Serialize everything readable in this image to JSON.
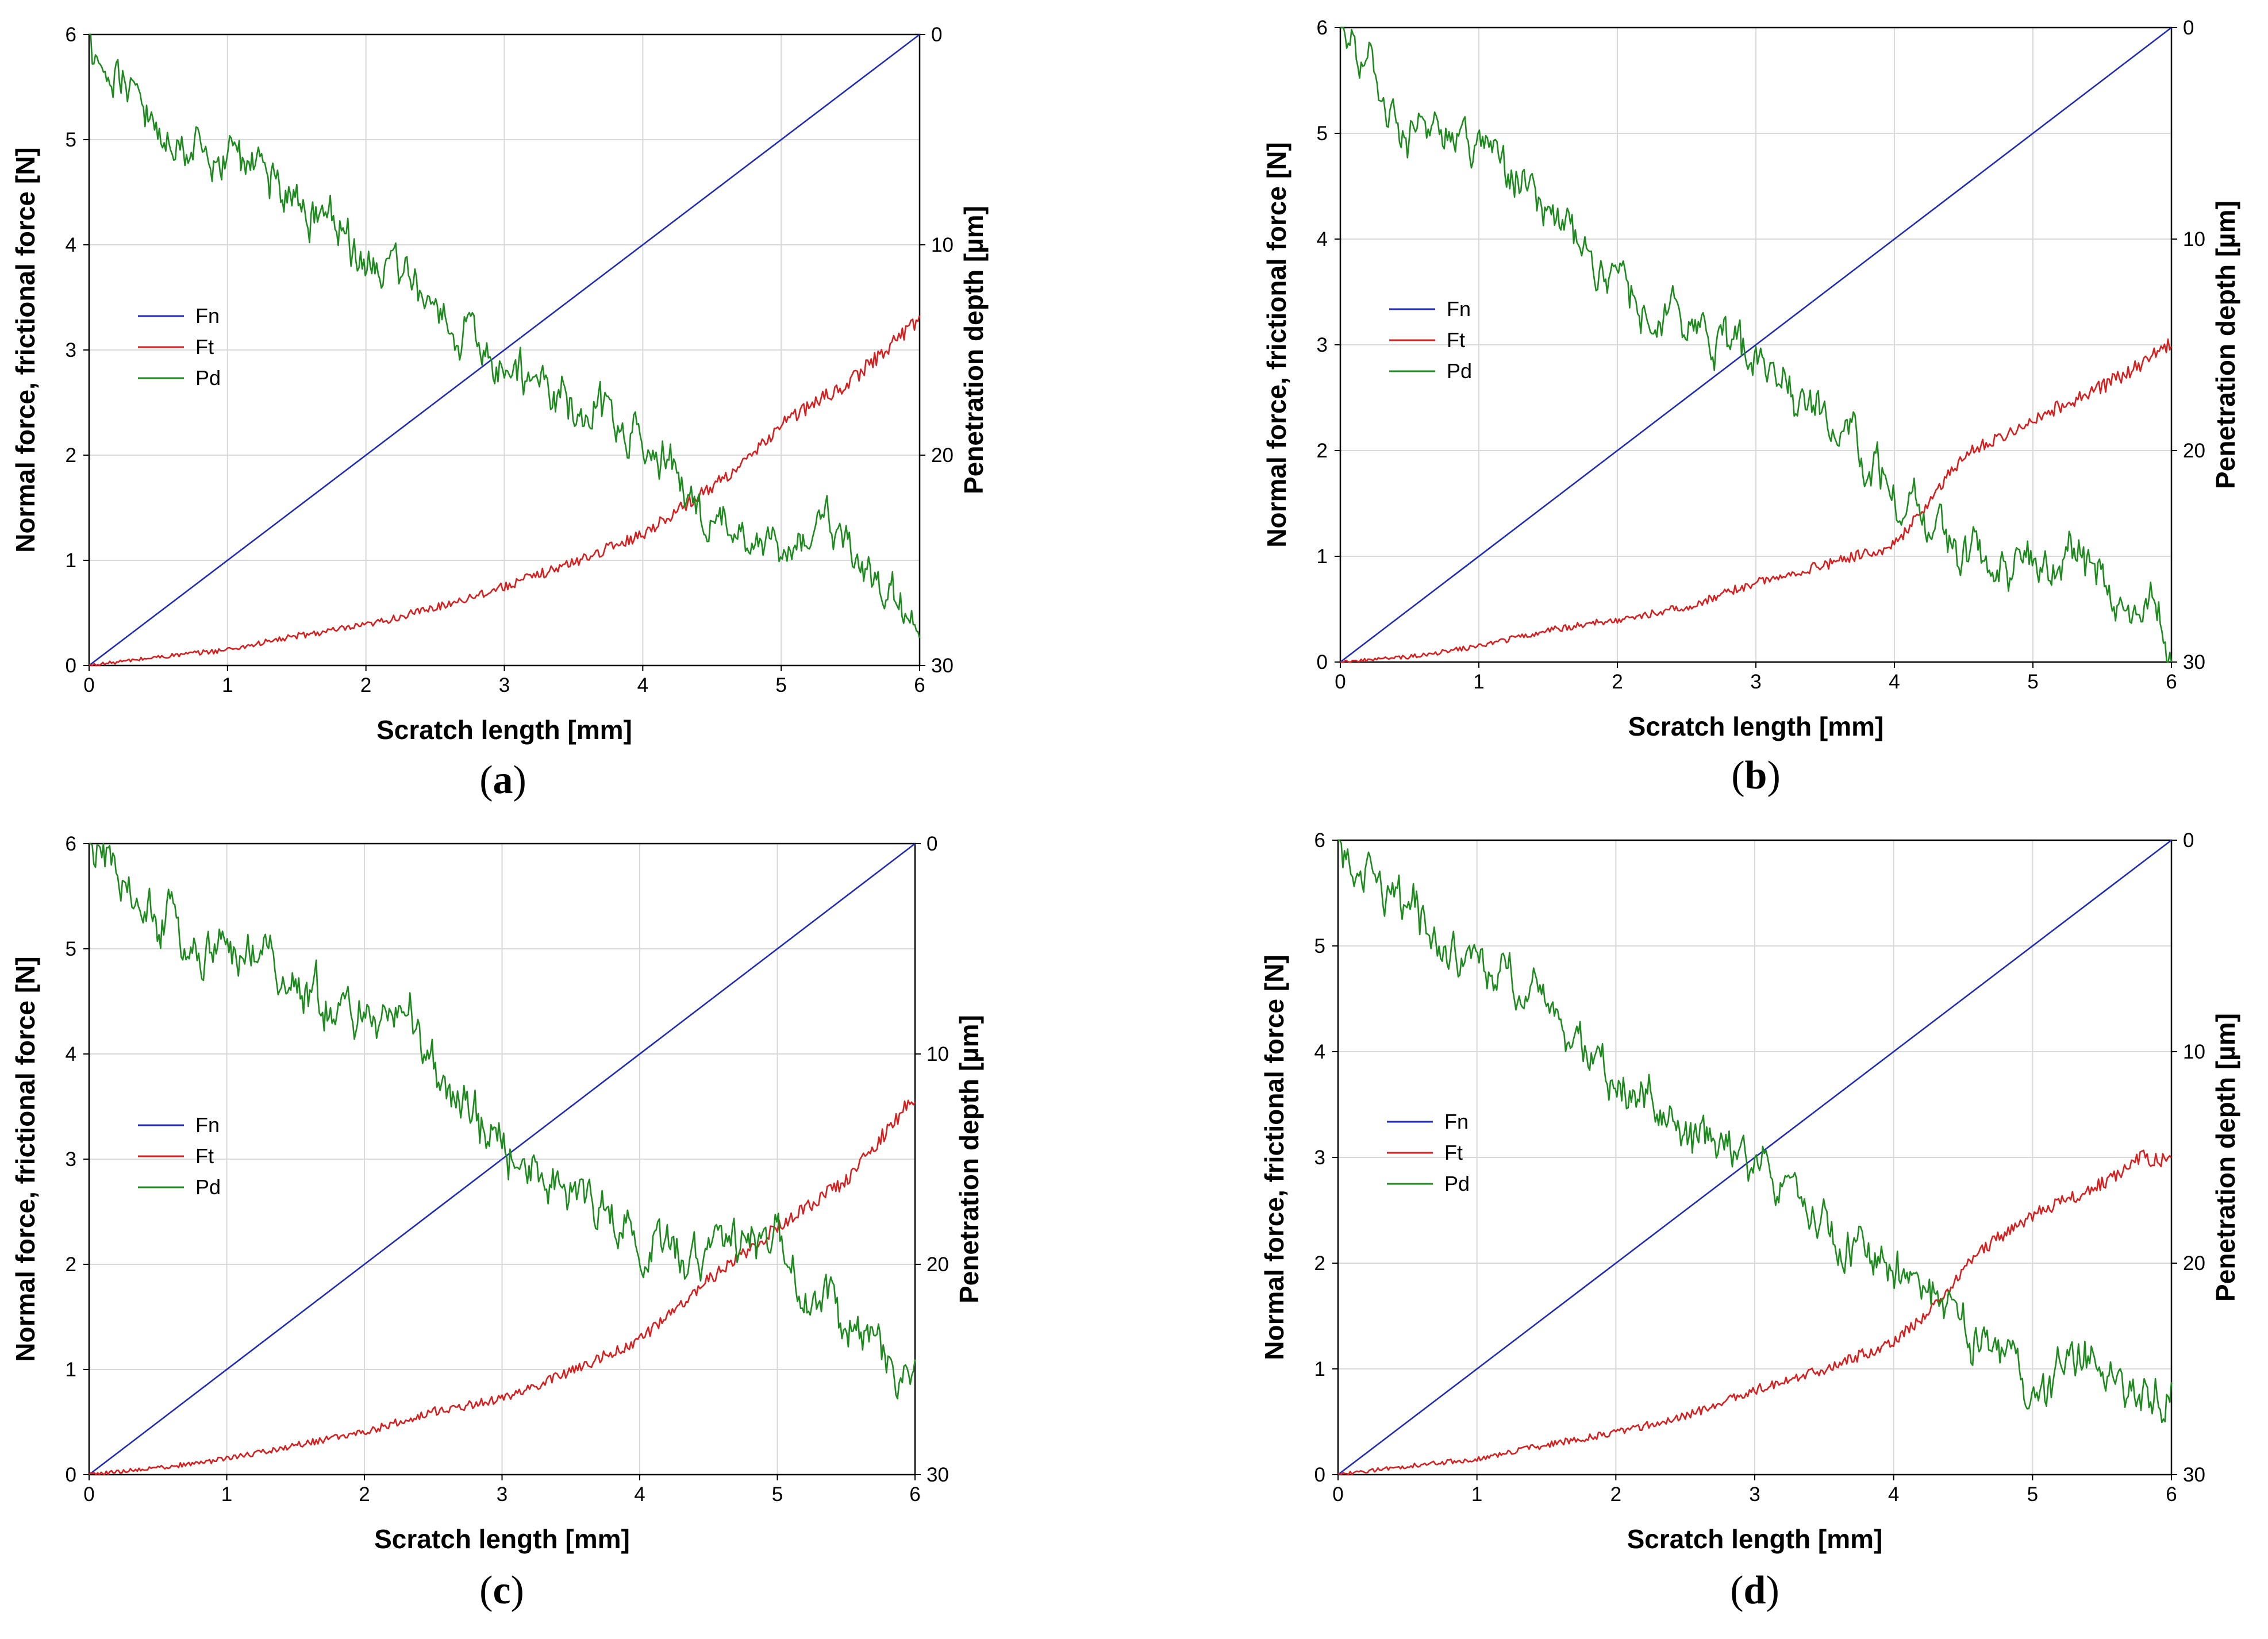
{
  "figure": {
    "panels_order": [
      "a",
      "b",
      "c",
      "d"
    ]
  },
  "chart_data": [
    {
      "type": "line",
      "panel_label": "a",
      "xlabel": "Scratch length [mm]",
      "ylabel_left": "Normal force, frictional force [N]",
      "ylabel_right": "Penetration depth [µm]",
      "xlim": [
        0,
        6
      ],
      "ylim_left": [
        0,
        6
      ],
      "ylim_right": [
        0,
        30
      ],
      "xticks": [
        "0",
        "1",
        "2",
        "3",
        "4",
        "5",
        "6"
      ],
      "yticks_left": [
        "0",
        "1",
        "2",
        "3",
        "4",
        "5",
        "6"
      ],
      "yticks_right": [
        "0",
        "10",
        "20",
        "30"
      ],
      "grid": true,
      "legend": [
        "Fn",
        "Ft",
        "Pd"
      ],
      "series": [
        {
          "name": "Fn",
          "axis": "left",
          "color": "#1f2bb5",
          "x": [
            0,
            6
          ],
          "values": [
            0,
            6
          ]
        },
        {
          "name": "Ft",
          "axis": "left",
          "color": "#d62020",
          "x": [
            0,
            0.5,
            1,
            1.5,
            2,
            2.5,
            3,
            3.5,
            4,
            4.5,
            4.8,
            5,
            5.5,
            6
          ],
          "values": [
            0,
            0.08,
            0.15,
            0.28,
            0.38,
            0.55,
            0.75,
            0.98,
            1.25,
            1.7,
            2.0,
            2.3,
            2.7,
            3.3
          ]
        },
        {
          "name": "Pd",
          "axis": "right",
          "color": "#1d8a1d",
          "x": [
            0,
            0.3,
            0.6,
            1,
            1.4,
            1.8,
            2.2,
            2.6,
            3,
            3.3,
            3.6,
            4,
            4.3,
            4.5,
            4.8,
            5,
            5.3,
            5.5,
            5.7,
            6
          ],
          "values": [
            0,
            2.5,
            5,
            5.8,
            7.5,
            9.5,
            11.5,
            13.5,
            16,
            16.5,
            18,
            19,
            21.5,
            23,
            23.5,
            24.5,
            23,
            24.5,
            26.5,
            28
          ]
        }
      ]
    },
    {
      "type": "line",
      "panel_label": "b",
      "xlabel": "Scratch length [mm]",
      "ylabel_left": "Normal force, frictional force [N]",
      "ylabel_right": "Penetration depth [µm]",
      "xlim": [
        0,
        6
      ],
      "ylim_left": [
        0,
        6
      ],
      "ylim_right": [
        0,
        30
      ],
      "xticks": [
        "0",
        "1",
        "2",
        "3",
        "4",
        "5",
        "6"
      ],
      "yticks_left": [
        "0",
        "1",
        "2",
        "3",
        "4",
        "5",
        "6"
      ],
      "yticks_right": [
        "0",
        "10",
        "20",
        "30"
      ],
      "grid": true,
      "legend": [
        "Fn",
        "Ft",
        "Pd"
      ],
      "series": [
        {
          "name": "Fn",
          "axis": "left",
          "color": "#1f2bb5",
          "x": [
            0,
            6
          ],
          "values": [
            0,
            6
          ]
        },
        {
          "name": "Ft",
          "axis": "left",
          "color": "#d62020",
          "x": [
            0,
            0.5,
            1,
            1.5,
            2,
            2.5,
            3,
            3.5,
            4,
            4.5,
            5,
            5.5,
            6
          ],
          "values": [
            0,
            0.05,
            0.15,
            0.3,
            0.4,
            0.52,
            0.75,
            0.92,
            1.1,
            1.95,
            2.3,
            2.6,
            3.0
          ]
        },
        {
          "name": "Pd",
          "axis": "right",
          "color": "#1d8a1d",
          "x": [
            0,
            0.2,
            0.4,
            0.6,
            1,
            1.4,
            1.8,
            2.2,
            2.6,
            3,
            3.4,
            3.7,
            4,
            4.3,
            4.6,
            5,
            5.3,
            5.6,
            5.9,
            6
          ],
          "values": [
            0,
            1.5,
            5,
            4.5,
            5,
            8,
            11,
            13.5,
            14.5,
            15.5,
            18,
            20,
            22,
            24,
            25,
            26,
            25,
            27,
            28,
            29
          ]
        }
      ]
    },
    {
      "type": "line",
      "panel_label": "c",
      "xlabel": "Scratch length [mm]",
      "ylabel_left": "Normal force, frictional force [N]",
      "ylabel_right": "Penetration depth [µm]",
      "xlim": [
        0,
        6
      ],
      "ylim_left": [
        0,
        6
      ],
      "ylim_right": [
        0,
        30
      ],
      "xticks": [
        "0",
        "1",
        "2",
        "3",
        "4",
        "5",
        "6"
      ],
      "yticks_left": [
        "0",
        "1",
        "2",
        "3",
        "4",
        "5",
        "6"
      ],
      "yticks_right": [
        "0",
        "10",
        "20",
        "30"
      ],
      "grid": true,
      "legend": [
        "Fn",
        "Ft",
        "Pd"
      ],
      "series": [
        {
          "name": "Fn",
          "axis": "left",
          "color": "#1f2bb5",
          "x": [
            0,
            6
          ],
          "values": [
            0,
            6
          ]
        },
        {
          "name": "Ft",
          "axis": "left",
          "color": "#d62020",
          "x": [
            0,
            0.6,
            1,
            1.5,
            2,
            2.5,
            3,
            3.5,
            4,
            4.5,
            5,
            5.5,
            6
          ],
          "values": [
            0,
            0.08,
            0.15,
            0.28,
            0.4,
            0.6,
            0.72,
            0.98,
            1.28,
            1.85,
            2.35,
            2.8,
            3.6
          ]
        },
        {
          "name": "Pd",
          "axis": "right",
          "color": "#1d8a1d",
          "x": [
            0,
            0.4,
            0.7,
            1,
            1.5,
            2,
            2.4,
            2.6,
            3,
            3.3,
            3.7,
            4,
            4.5,
            4.8,
            5,
            5.2,
            5.5,
            5.8,
            6
          ],
          "values": [
            0,
            2.5,
            4.5,
            5,
            7,
            8.5,
            9,
            12,
            14,
            16,
            17.5,
            18.5,
            20,
            19,
            18,
            22,
            22.5,
            25,
            26
          ]
        }
      ]
    },
    {
      "type": "line",
      "panel_label": "d",
      "xlabel": "Scratch length [mm]",
      "ylabel_left": "Normal force, frictional force [N]",
      "ylabel_right": "Penetration depth [µm]",
      "xlim": [
        0,
        6
      ],
      "ylim_left": [
        0,
        6
      ],
      "ylim_right": [
        0,
        30
      ],
      "xticks": [
        "0",
        "1",
        "2",
        "3",
        "4",
        "5",
        "6"
      ],
      "yticks_left": [
        "0",
        "1",
        "2",
        "3",
        "4",
        "5",
        "6"
      ],
      "yticks_right": [
        "0",
        "10",
        "20",
        "30"
      ],
      "grid": true,
      "legend": [
        "Fn",
        "Ft",
        "Pd"
      ],
      "series": [
        {
          "name": "Fn",
          "axis": "left",
          "color": "#1f2bb5",
          "x": [
            0,
            6
          ],
          "values": [
            0,
            6
          ]
        },
        {
          "name": "Ft",
          "axis": "left",
          "color": "#d62020",
          "x": [
            0,
            0.5,
            1,
            1.5,
            2,
            2.5,
            3,
            3.5,
            4,
            4.3,
            4.6,
            5,
            5.5,
            5.8,
            6
          ],
          "values": [
            0,
            0.08,
            0.15,
            0.28,
            0.4,
            0.55,
            0.8,
            1.0,
            1.25,
            1.6,
            2.1,
            2.45,
            2.75,
            3.0,
            2.95
          ]
        },
        {
          "name": "Pd",
          "axis": "right",
          "color": "#1d8a1d",
          "x": [
            0,
            0.4,
            0.8,
            1.2,
            1.6,
            2,
            2.4,
            2.8,
            3,
            3.4,
            3.8,
            4,
            4.3,
            4.6,
            5,
            5.4,
            5.7,
            6
          ],
          "values": [
            0,
            2.5,
            5,
            6.5,
            9,
            11,
            13.5,
            14.5,
            15.5,
            17.5,
            19.5,
            20.5,
            22,
            23.5,
            26,
            25,
            26,
            26
          ]
        }
      ]
    }
  ]
}
